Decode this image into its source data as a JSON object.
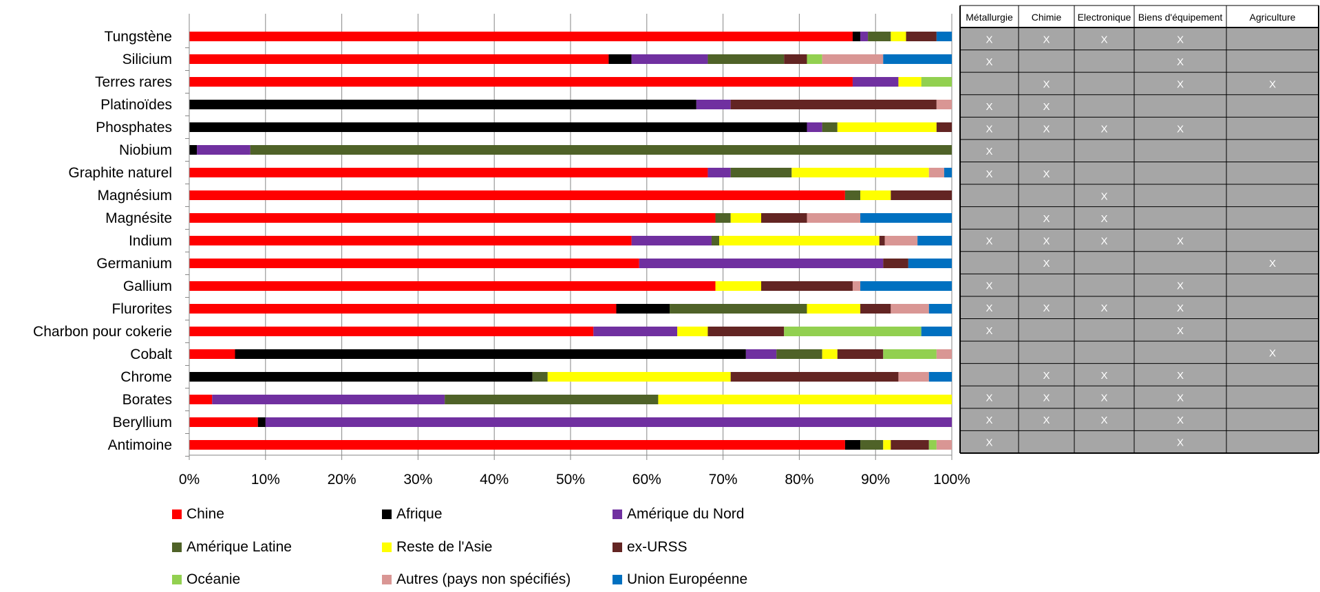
{
  "chart_data": {
    "type": "bar",
    "stacked": "percent",
    "orientation": "horizontal",
    "title": "",
    "xlabel": "",
    "ylabel": "",
    "xlim": [
      0,
      100
    ],
    "x_ticks": [
      "0%",
      "10%",
      "20%",
      "30%",
      "40%",
      "50%",
      "60%",
      "70%",
      "80%",
      "90%",
      "100%"
    ],
    "grid": "vertical",
    "legend_position": "bottom",
    "categories": [
      "Tungstène",
      "Silicium",
      "Terres rares",
      "Platinoïdes",
      "Phosphates",
      "Niobium",
      "Graphite naturel",
      "Magnésium",
      "Magnésite",
      "Indium",
      "Germanium",
      "Gallium",
      "Flurorites",
      "Charbon pour cokerie",
      "Cobalt",
      "Chrome",
      "Borates",
      "Beryllium",
      "Antimoine"
    ],
    "series": [
      {
        "name": "Chine",
        "color": "#ff0000",
        "values": [
          87,
          55,
          87,
          0,
          0,
          0,
          68,
          86,
          69,
          58,
          59,
          69,
          56,
          53,
          6,
          0,
          3,
          9,
          86
        ]
      },
      {
        "name": "Afrique",
        "color": "#000000",
        "values": [
          1,
          3,
          0,
          66.5,
          81,
          1,
          0,
          0,
          0,
          0,
          0,
          0,
          7,
          0,
          67,
          45,
          0,
          1,
          2
        ]
      },
      {
        "name": "Amérique du Nord",
        "color": "#7030a0",
        "values": [
          1,
          10,
          6,
          4.5,
          2,
          7,
          3,
          0,
          0,
          10.5,
          32,
          0,
          0,
          11,
          4,
          0,
          30.5,
          90,
          0
        ]
      },
      {
        "name": "Amérique Latine",
        "color": "#4f6228",
        "values": [
          3,
          10,
          0,
          0,
          2,
          92,
          8,
          2,
          2,
          1,
          0,
          0,
          18,
          0,
          6,
          2,
          28,
          0,
          3
        ]
      },
      {
        "name": "Reste de l'Asie",
        "color": "#ffff00",
        "values": [
          2,
          0,
          3,
          0,
          13,
          0,
          18,
          4,
          4,
          21,
          0,
          6,
          7,
          4,
          2,
          24,
          38.5,
          0,
          1
        ]
      },
      {
        "name": "ex-URSS",
        "color": "#632523",
        "values": [
          4,
          3,
          0,
          27,
          2,
          0,
          0,
          8,
          6,
          0.7,
          3.3,
          12,
          4,
          10,
          6,
          22,
          0,
          0,
          5
        ]
      },
      {
        "name": "Océanie",
        "color": "#92d050",
        "values": [
          0,
          2,
          4,
          0,
          0,
          0,
          0,
          0,
          0,
          0,
          0,
          0,
          0,
          18,
          7,
          0,
          0,
          0,
          1
        ]
      },
      {
        "name": "Autres (pays non spécifiés)",
        "color": "#d99694",
        "values": [
          0,
          8,
          0,
          2,
          0,
          0,
          2,
          0,
          7,
          4.3,
          0,
          1,
          5,
          0,
          2,
          4,
          0,
          0,
          2
        ]
      },
      {
        "name": "Union Européenne",
        "color": "#0070c0",
        "values": [
          2,
          9,
          0,
          0,
          0,
          0,
          1,
          0,
          12,
          4.5,
          5.7,
          12,
          3,
          4,
          0,
          3,
          0,
          0,
          0
        ]
      }
    ]
  },
  "usage_table": {
    "headers": [
      "Métallurgie",
      "Chimie",
      "Electronique",
      "Biens d'équipement",
      "Agriculture"
    ],
    "mark": "X",
    "marks": [
      [
        1,
        1,
        1,
        1,
        0
      ],
      [
        1,
        0,
        0,
        1,
        0
      ],
      [
        0,
        1,
        0,
        1,
        1
      ],
      [
        1,
        1,
        0,
        0,
        0
      ],
      [
        1,
        1,
        1,
        1,
        0
      ],
      [
        1,
        0,
        0,
        0,
        0
      ],
      [
        1,
        1,
        0,
        0,
        0
      ],
      [
        0,
        0,
        1,
        0,
        0
      ],
      [
        0,
        1,
        1,
        0,
        0
      ],
      [
        1,
        1,
        1,
        1,
        0
      ],
      [
        0,
        1,
        0,
        0,
        1
      ],
      [
        1,
        0,
        0,
        1,
        0
      ],
      [
        1,
        1,
        1,
        1,
        0
      ],
      [
        1,
        0,
        0,
        1,
        0
      ],
      [
        0,
        0,
        0,
        0,
        1
      ],
      [
        0,
        1,
        1,
        1,
        0
      ],
      [
        1,
        1,
        1,
        1,
        0
      ],
      [
        1,
        1,
        1,
        1,
        0
      ],
      [
        1,
        0,
        0,
        1,
        0
      ]
    ]
  }
}
